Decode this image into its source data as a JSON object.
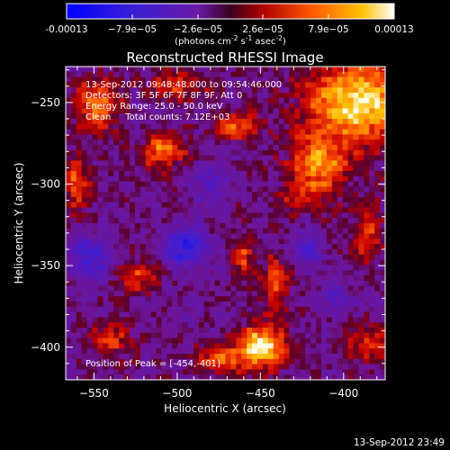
{
  "colorbar": {
    "tick_labels": [
      "-0.00013",
      "−7.9e−05",
      "−2.6e−05",
      "2.6e−05",
      "7.9e−05",
      "0.00013"
    ],
    "unit_main": "(photons cm",
    "unit_exp1": "-2",
    "unit_mid": " s",
    "unit_exp2": "-1",
    "unit_mid2": " asec",
    "unit_exp3": "-2",
    "unit_end": ")"
  },
  "info": {
    "line1": "13-Sep-2012 09:48:48.000 to 09:54:46.000",
    "line2": "Detectors: 3F 5F 6F 7F 8F 9F, Att 0",
    "line3": "Energy Range: 25.0 - 50.0 keV",
    "line4": "Clean     Total counts: 7.12E+03",
    "peak": "Position of Peak = [-454,-401]"
  },
  "footer_timestamp": "13-Sep-2012 23:49",
  "chart_data": {
    "type": "heatmap",
    "title": "Reconstructed RHESSI Image",
    "xlabel": "Heliocentric X (arcsec)",
    "ylabel": "Heliocentric Y (arcsec)",
    "xlim": [
      -567,
      -375
    ],
    "ylim": [
      -420,
      -228
    ],
    "x_ticks": [
      -550,
      -500,
      -450,
      -400
    ],
    "y_ticks": [
      -250,
      -300,
      -350,
      -400
    ],
    "x_tick_labels": [
      "−550",
      "−500",
      "−450",
      "−400"
    ],
    "y_tick_labels": [
      "−250",
      "−300",
      "−350",
      "−400"
    ],
    "colorscale_range": [
      -0.00013,
      0.00013
    ],
    "grid": false,
    "peak_position": [
      -454,
      -401
    ],
    "hotspots": [
      {
        "x": -392,
        "y": -250,
        "value": 0.00012,
        "sx": 22,
        "sy": 18
      },
      {
        "x": -415,
        "y": -290,
        "value": 9e-05,
        "sx": 12,
        "sy": 14
      },
      {
        "x": -450,
        "y": -400,
        "value": 0.00013,
        "sx": 10,
        "sy": 9
      },
      {
        "x": -508,
        "y": -280,
        "value": 8e-05,
        "sx": 9,
        "sy": 8
      },
      {
        "x": -548,
        "y": -250,
        "value": 8e-05,
        "sx": 10,
        "sy": 12
      },
      {
        "x": -560,
        "y": -300,
        "value": 7e-05,
        "sx": 5,
        "sy": 12
      },
      {
        "x": -465,
        "y": -265,
        "value": 7e-05,
        "sx": 10,
        "sy": 6
      },
      {
        "x": -440,
        "y": -360,
        "value": 6e-05,
        "sx": 6,
        "sy": 14
      },
      {
        "x": -460,
        "y": -345,
        "value": 6e-05,
        "sx": 5,
        "sy": 8
      },
      {
        "x": -522,
        "y": -357,
        "value": 6e-05,
        "sx": 8,
        "sy": 6
      },
      {
        "x": -475,
        "y": -408,
        "value": 7e-05,
        "sx": 10,
        "sy": 6
      },
      {
        "x": -385,
        "y": -330,
        "value": 6e-05,
        "sx": 7,
        "sy": 12
      },
      {
        "x": -385,
        "y": -398,
        "value": 6e-05,
        "sx": 10,
        "sy": 8
      },
      {
        "x": -540,
        "y": -395,
        "value": 5e-05,
        "sx": 10,
        "sy": 8
      },
      {
        "x": -500,
        "y": -240,
        "value": 6e-05,
        "sx": 12,
        "sy": 6
      },
      {
        "x": -430,
        "y": -310,
        "value": 4e-05,
        "sx": 6,
        "sy": 6
      }
    ],
    "coldspots": [
      {
        "x": -495,
        "y": -338,
        "value": -9e-05,
        "sx": 9,
        "sy": 9
      },
      {
        "x": -553,
        "y": -345,
        "value": -8e-05,
        "sx": 8,
        "sy": 9
      },
      {
        "x": -422,
        "y": -340,
        "value": -6e-05,
        "sx": 7,
        "sy": 7
      },
      {
        "x": -405,
        "y": -370,
        "value": -5e-05,
        "sx": 6,
        "sy": 6
      },
      {
        "x": -480,
        "y": -300,
        "value": -4e-05,
        "sx": 8,
        "sy": 8
      }
    ]
  }
}
